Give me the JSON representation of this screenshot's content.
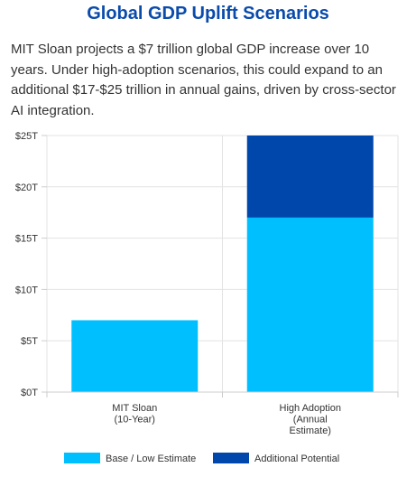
{
  "title": "Global GDP Uplift Scenarios",
  "subtitle": "MIT Sloan projects a $7 trillion global GDP increase over 10 years. Under high-adoption scenarios, this could expand to an additional $17-$25 trillion in annual gains, driven by cross-sector AI integration.",
  "chart_data": {
    "type": "bar",
    "stacked": true,
    "categories": [
      [
        "MIT Sloan",
        "(10-Year)"
      ],
      [
        "High Adoption",
        "(Annual",
        "Estimate)"
      ]
    ],
    "series": [
      {
        "name": "Base / Low Estimate",
        "values": [
          7,
          17
        ],
        "color": "#00bfff"
      },
      {
        "name": "Additional Potential",
        "values": [
          0,
          8
        ],
        "color": "#0047ab"
      }
    ],
    "ylim": [
      0,
      25
    ],
    "yticks": [
      0,
      5,
      10,
      15,
      20,
      25
    ],
    "ytick_labels": [
      "$0T",
      "$5T",
      "$10T",
      "$15T",
      "$20T",
      "$25T"
    ],
    "grid": true,
    "legend": "bottom"
  }
}
